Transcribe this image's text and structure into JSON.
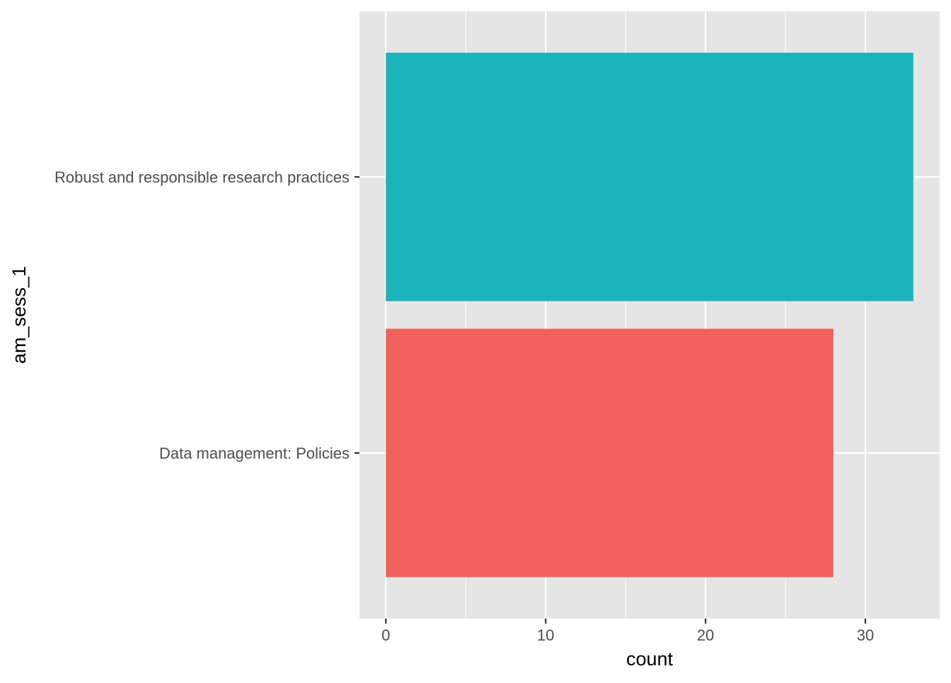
{
  "chart_data": {
    "type": "bar",
    "orientation": "horizontal",
    "title": "",
    "xlabel": "count",
    "ylabel": "am_sess_1",
    "categories": [
      "Data management: Policies",
      "Robust and responsible research practices"
    ],
    "values": [
      28,
      33
    ],
    "colors": [
      "#F2605C",
      "#1AB3B9"
    ],
    "xlim": [
      -1.65,
      34.65
    ],
    "xticks": [
      0,
      10,
      20,
      30
    ],
    "xticks_minor": [
      5,
      15,
      25
    ],
    "grid": true,
    "legend": "none",
    "panel_background": "#E5E5E5",
    "grid_color": "#FFFFFF"
  }
}
